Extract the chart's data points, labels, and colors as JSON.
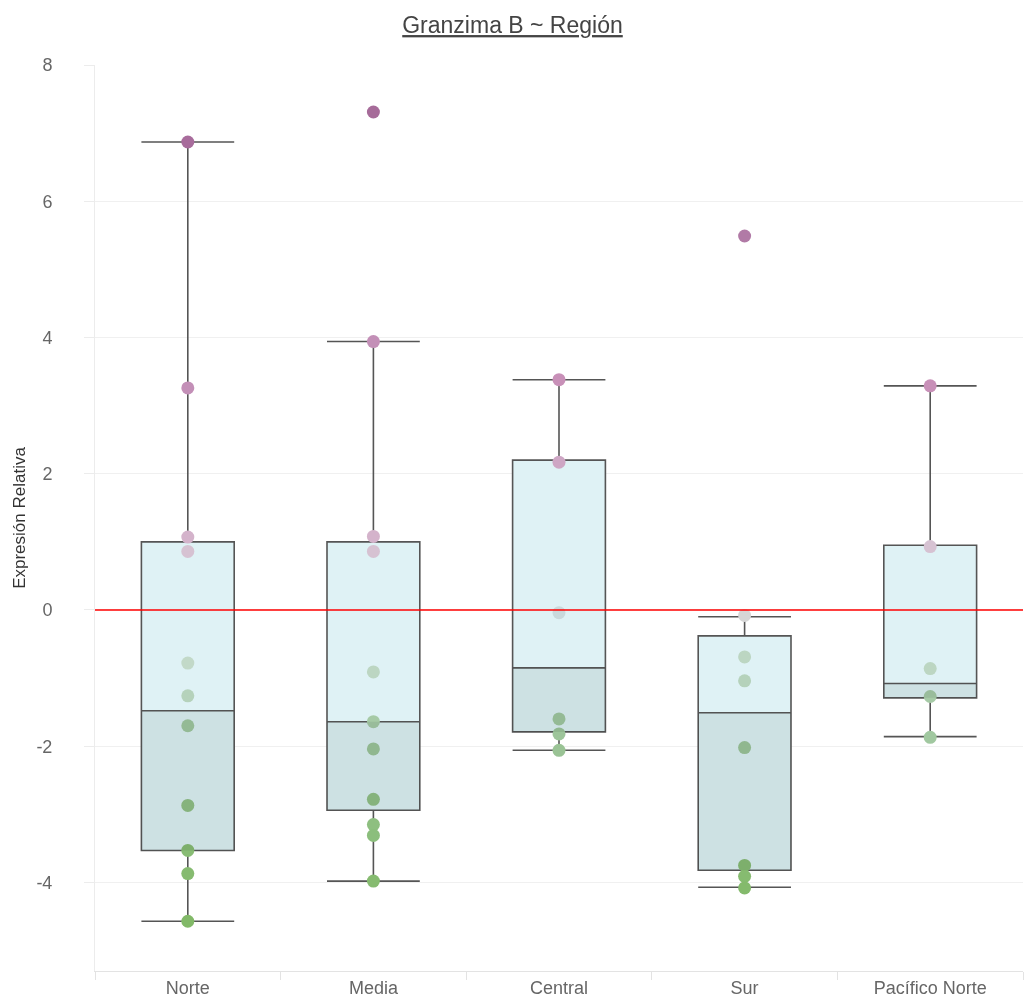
{
  "chart_data": {
    "type": "box",
    "title": "Granzima B ~ Región",
    "ylabel": "Expresión Relativa",
    "categories": [
      "Norte",
      "Media",
      "Central",
      "Sur",
      "Pacífico Norte"
    ],
    "ylim": [
      -5.3,
      8
    ],
    "yticks": [
      -4,
      -2,
      0,
      2,
      4,
      6,
      8
    ],
    "grid": "y",
    "marker": "circle",
    "series": [
      {
        "color": "#dff2f5",
        "boxes": [
          {
            "low": -4.57,
            "q1": -3.53,
            "median": -1.48,
            "q3": 1.0,
            "high": 6.87
          },
          {
            "low": -3.98,
            "q1": -2.94,
            "median": -1.64,
            "q3": 1.0,
            "high": 3.94
          },
          {
            "low": -2.06,
            "q1": -1.79,
            "median": -0.85,
            "q3": 2.2,
            "high": 3.38
          },
          {
            "low": -4.07,
            "q1": -3.82,
            "median": -1.51,
            "q3": -0.38,
            "high": -0.1
          },
          {
            "low": -1.86,
            "q1": -1.29,
            "median": -1.08,
            "q3": 0.95,
            "high": 3.29
          }
        ]
      },
      {
        "type": "scatter",
        "x": [
          "Norte",
          "Norte",
          "Norte",
          "Norte",
          "Norte",
          "Norte",
          "Norte",
          "Norte",
          "Norte",
          "Norte",
          "Norte",
          "Media",
          "Media",
          "Media",
          "Media",
          "Media",
          "Media",
          "Media",
          "Media",
          "Media",
          "Media",
          "Media",
          "Central",
          "Central",
          "Central",
          "Central",
          "Central",
          "Central",
          "Sur",
          "Sur",
          "Sur",
          "Sur",
          "Sur",
          "Sur",
          "Sur",
          "Sur",
          "Pacífico Norte",
          "Pacífico Norte",
          "Pacífico Norte",
          "Pacífico Norte",
          "Pacífico Norte"
        ],
        "values": [
          6.87,
          3.26,
          1.07,
          0.86,
          -0.78,
          -1.26,
          -1.7,
          -2.87,
          -3.53,
          -3.87,
          -4.57,
          7.31,
          3.94,
          1.08,
          0.86,
          -0.91,
          -1.64,
          -2.04,
          -2.78,
          -3.15,
          -3.31,
          -3.98,
          3.38,
          2.17,
          -0.04,
          -1.6,
          -1.82,
          -2.06,
          5.49,
          -0.08,
          -0.69,
          -1.04,
          -2.02,
          -3.75,
          -3.91,
          -4.08,
          3.29,
          0.93,
          -0.86,
          -1.27,
          -1.87
        ],
        "colors": [
          "#a86c9c",
          "#c38fb7",
          "#d4b3cb",
          "#d6c2d2",
          "#c2d9c8",
          "#b5d2bb",
          "#a1c8a0",
          "#92c086",
          "#88bc74",
          "#86bb70",
          "#82b968",
          "#a66b99",
          "#c38fb7",
          "#d4b3cb",
          "#d6c2d2",
          "#bcd6c2",
          "#a6caa6",
          "#9dc59a",
          "#92c086",
          "#8ebf80",
          "#8bbe7c",
          "#86bb70",
          "#c890b8",
          "#cea6c4",
          "#c9d9dc",
          "#a1c8a0",
          "#9dc59a",
          "#9ac395",
          "#b17aa6",
          "#d6d6d6",
          "#bcd6c2",
          "#b5d2bb",
          "#9dc59a",
          "#88bc74",
          "#86bb70",
          "#84ba6c",
          "#c890b8",
          "#d6c2d2",
          "#bcd6c2",
          "#a6caa6",
          "#a1c8a0"
        ]
      }
    ],
    "ref_lines": [
      {
        "axis": "y",
        "value": 0,
        "color": "#ff0000"
      }
    ]
  }
}
